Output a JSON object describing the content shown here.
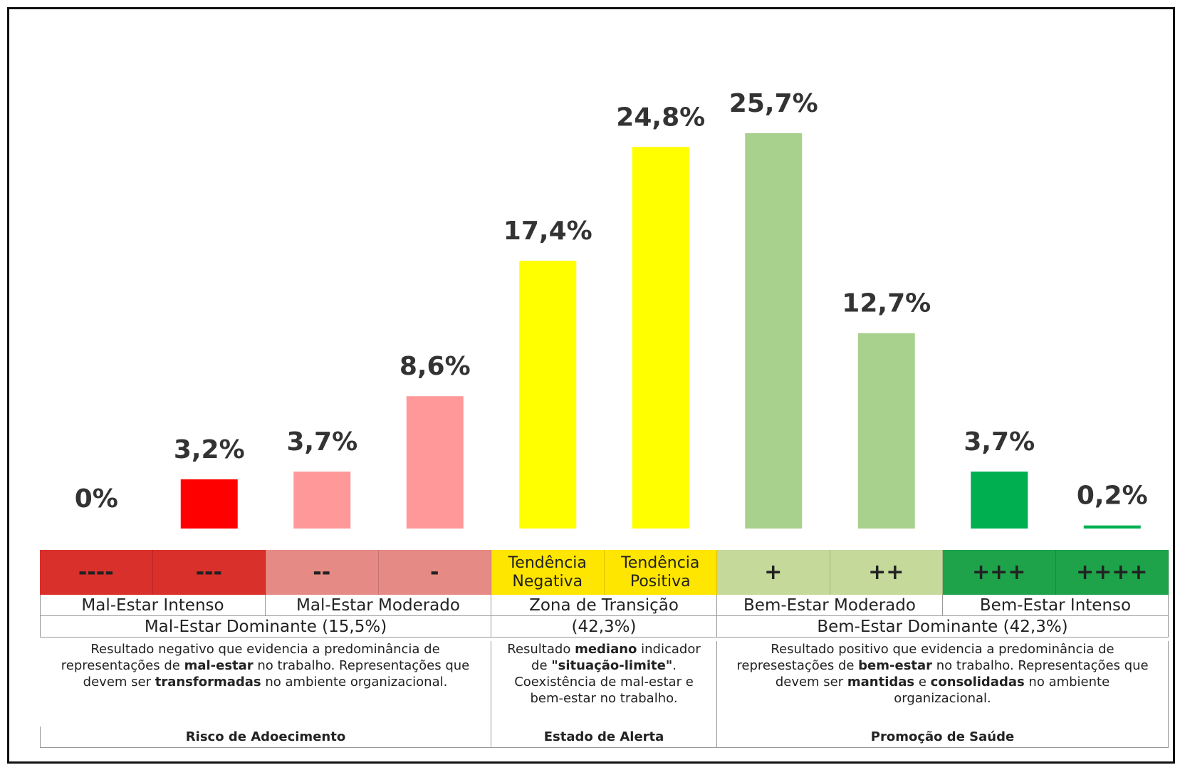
{
  "chart_data": {
    "type": "bar",
    "categories": [
      "----",
      "---",
      "--",
      "-",
      "Tendência Negativa",
      "Tendência Positiva",
      "+",
      "++",
      "+++",
      "++++"
    ],
    "values": [
      0,
      3.2,
      3.7,
      8.6,
      17.4,
      24.8,
      25.7,
      12.7,
      3.7,
      0.2
    ],
    "value_labels": [
      "0%",
      "3,2%",
      "3,7%",
      "8,6%",
      "17,4%",
      "24,8%",
      "25,7%",
      "12,7%",
      "3,7%",
      "0,2%"
    ],
    "colors": [
      "#ff0000",
      "#ff0000",
      "#ff9999",
      "#ff9999",
      "#ffff00",
      "#ffff00",
      "#a9d18e",
      "#a9d18e",
      "#00b050",
      "#00b050"
    ],
    "band_colors": [
      "#d9302c",
      "#d9302c",
      "#e58a85",
      "#e58a85",
      "#ffe600",
      "#ffe600",
      "#c5d99a",
      "#c5d99a",
      "#1ea34a",
      "#1ea34a"
    ],
    "levels": [
      "Mal-Estar Intenso",
      "Mal-Estar Moderado",
      "Zona de Transição",
      "Bem-Estar Moderado",
      "Bem-Estar Intenso"
    ],
    "zones": [
      "Mal-Estar Dominante (15,5%)",
      "(42,3%)",
      "Bem-Estar Dominante (42,3%)"
    ],
    "descriptions": [
      [
        {
          "text": "Resultado negativo que evidencia a predominância de representações de "
        },
        {
          "text": "mal-estar",
          "bold": true
        },
        {
          "text": " no trabalho. Representações que devem ser "
        },
        {
          "text": "transformadas",
          "bold": true
        },
        {
          "text": " no ambiente organizacional."
        }
      ],
      [
        {
          "text": "Resultado "
        },
        {
          "text": "mediano",
          "bold": true
        },
        {
          "text": " indicador de "
        },
        {
          "text": "\"situação-limite\"",
          "bold": true
        },
        {
          "text": ". Coexistência de mal-estar e bem-estar no trabalho."
        }
      ],
      [
        {
          "text": "Resultado positivo que evidencia a predominância de represestações de "
        },
        {
          "text": "bem-estar",
          "bold": true
        },
        {
          "text": " no trabalho. Representações que devem ser "
        },
        {
          "text": "mantidas",
          "bold": true
        },
        {
          "text": " e "
        },
        {
          "text": "consolidadas",
          "bold": true
        },
        {
          "text": " no ambiente organizacional."
        }
      ]
    ],
    "outcomes": [
      "Risco de Adoecimento",
      "Estado de Alerta",
      "Promoção de Saúde"
    ]
  }
}
